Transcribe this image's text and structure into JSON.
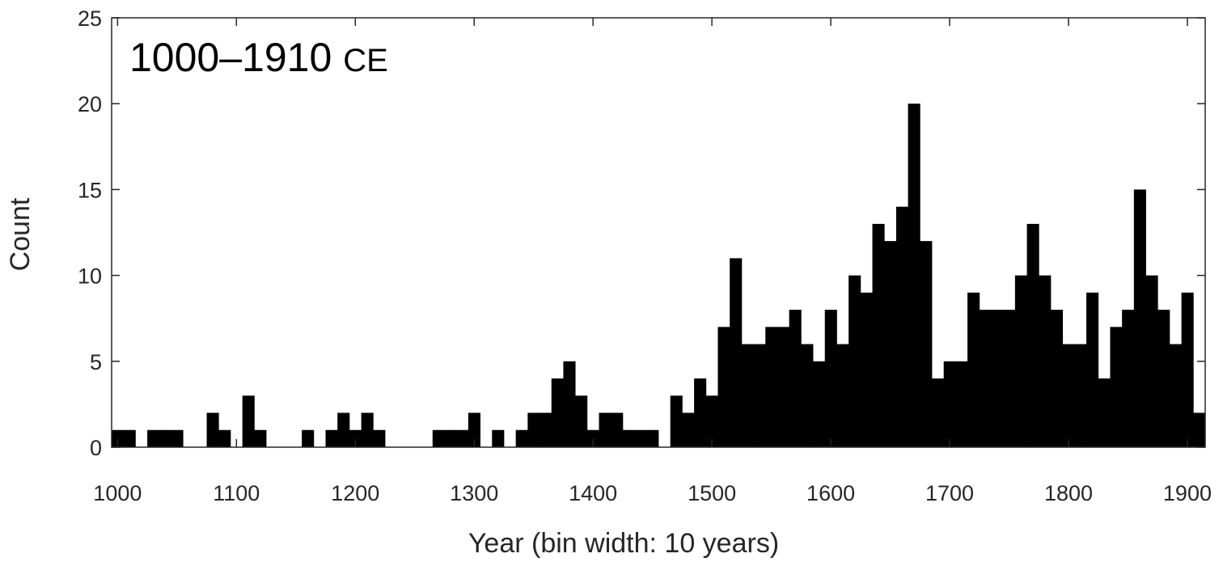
{
  "chart_data": {
    "type": "bar",
    "title": "1000–1910",
    "title_unit": "CE",
    "xlabel": "Year (bin width: 10 years)",
    "ylabel": "Count",
    "xlim": [
      995,
      1915
    ],
    "ylim": [
      0,
      25
    ],
    "xticks": [
      1000,
      1100,
      1200,
      1300,
      1400,
      1500,
      1600,
      1700,
      1800,
      1900
    ],
    "yticks": [
      0,
      5,
      10,
      15,
      20,
      25
    ],
    "bin_width": 10,
    "bar_color": "#000000",
    "grid": false,
    "bins_start": [
      995,
      1005,
      1015,
      1025,
      1035,
      1045,
      1055,
      1065,
      1075,
      1085,
      1095,
      1105,
      1115,
      1125,
      1135,
      1145,
      1155,
      1165,
      1175,
      1185,
      1195,
      1205,
      1215,
      1225,
      1235,
      1245,
      1255,
      1265,
      1275,
      1285,
      1295,
      1305,
      1315,
      1325,
      1335,
      1345,
      1355,
      1365,
      1375,
      1385,
      1395,
      1405,
      1415,
      1425,
      1435,
      1445,
      1455,
      1465,
      1475,
      1485,
      1495,
      1505,
      1515,
      1525,
      1535,
      1545,
      1555,
      1565,
      1575,
      1585,
      1595,
      1605,
      1615,
      1625,
      1635,
      1645,
      1655,
      1665,
      1675,
      1685,
      1695,
      1705,
      1715,
      1725,
      1735,
      1745,
      1755,
      1765,
      1775,
      1785,
      1795,
      1805,
      1815,
      1825,
      1835,
      1845,
      1855,
      1865,
      1875,
      1885,
      1895,
      1905
    ],
    "values": [
      1,
      1,
      0,
      1,
      1,
      1,
      0,
      0,
      2,
      1,
      0,
      3,
      1,
      0,
      0,
      0,
      1,
      0,
      1,
      2,
      1,
      2,
      1,
      0,
      0,
      0,
      0,
      1,
      1,
      1,
      2,
      0,
      1,
      0,
      1,
      2,
      2,
      4,
      5,
      3,
      1,
      2,
      2,
      1,
      1,
      1,
      0,
      3,
      2,
      4,
      3,
      7,
      11,
      6,
      6,
      7,
      7,
      8,
      6,
      5,
      8,
      6,
      10,
      9,
      13,
      12,
      14,
      20,
      12,
      4,
      5,
      5,
      9,
      8,
      8,
      8,
      10,
      13,
      10,
      8,
      6,
      6,
      9,
      4,
      7,
      8,
      15,
      10,
      8,
      6,
      9,
      2
    ]
  }
}
